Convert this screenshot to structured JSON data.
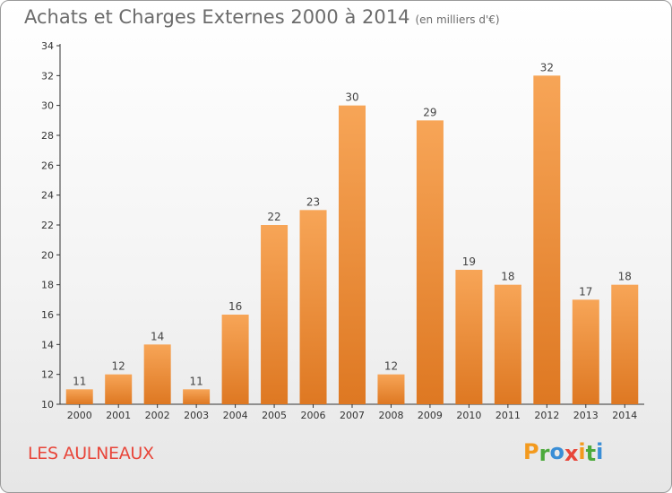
{
  "header": {
    "title": "Achats et Charges Externes 2000 à 2014",
    "unit": "(en milliers d'€)"
  },
  "footer": {
    "commune": "LES AULNEAUX",
    "logo_text": "Proxiti"
  },
  "colors": {
    "bar_light": "#f7a557",
    "bar_dark": "#de7822",
    "commune": "#e8463a",
    "logo_letters": [
      "#f39a1e",
      "#4caa3c",
      "#3a8ed6",
      "#e8463a",
      "#f39a1e",
      "#4caa3c",
      "#3a8ed6"
    ]
  },
  "chart_data": {
    "type": "bar",
    "title": "Achats et Charges Externes 2000 à 2014",
    "subtitle": "(en milliers d'€)",
    "categories": [
      "2000",
      "2001",
      "2002",
      "2003",
      "2004",
      "2005",
      "2006",
      "2007",
      "2008",
      "2009",
      "2010",
      "2011",
      "2012",
      "2013",
      "2014"
    ],
    "values": [
      11,
      12,
      14,
      11,
      16,
      22,
      23,
      30,
      12,
      29,
      19,
      18,
      32,
      17,
      18
    ],
    "ylim": [
      10,
      34
    ],
    "yticks": [
      10,
      12,
      14,
      16,
      18,
      20,
      22,
      24,
      26,
      28,
      30,
      32,
      34
    ],
    "xlabel": "",
    "ylabel": "",
    "grid": false,
    "legend": "none"
  }
}
